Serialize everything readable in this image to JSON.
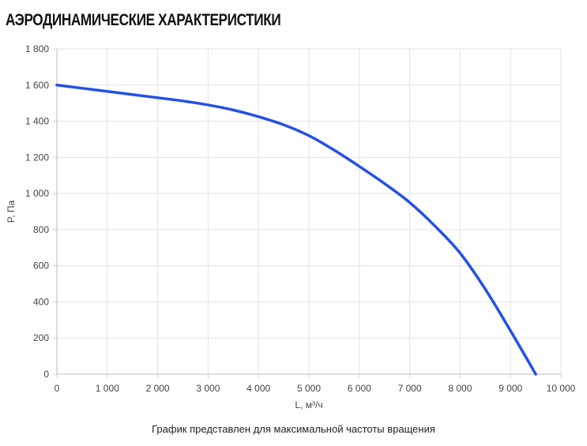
{
  "header": {
    "title": "АЭРОДИНАМИЧЕСКИЕ ХАРАКТЕРИСТИКИ"
  },
  "chart_data": {
    "type": "line",
    "xlabel": "L, м³/ч",
    "ylabel": "P, Па",
    "xlim": [
      0,
      10000
    ],
    "ylim": [
      0,
      1800
    ],
    "x_ticks": [
      "0",
      "1 000",
      "2 000",
      "3 000",
      "4 000",
      "5 000",
      "6 000",
      "7 000",
      "8 000",
      "9 000",
      "10 000"
    ],
    "y_ticks": [
      "0",
      "200",
      "400",
      "600",
      "800",
      "1 000",
      "1 200",
      "1 400",
      "1 600",
      "1 800"
    ],
    "grid": true,
    "series": [
      {
        "color": "#2450e8",
        "x": [
          0,
          1000,
          2000,
          2500,
          3000,
          3500,
          4000,
          4500,
          5000,
          5500,
          6000,
          6500,
          7000,
          7500,
          8000,
          8500,
          9000,
          9500
        ],
        "y": [
          1600,
          1565,
          1530,
          1512,
          1490,
          1462,
          1425,
          1380,
          1320,
          1240,
          1150,
          1055,
          950,
          820,
          670,
          470,
          240,
          0
        ]
      }
    ]
  },
  "footer": {
    "caption": "График представлен для максимальной частоты вращения"
  }
}
